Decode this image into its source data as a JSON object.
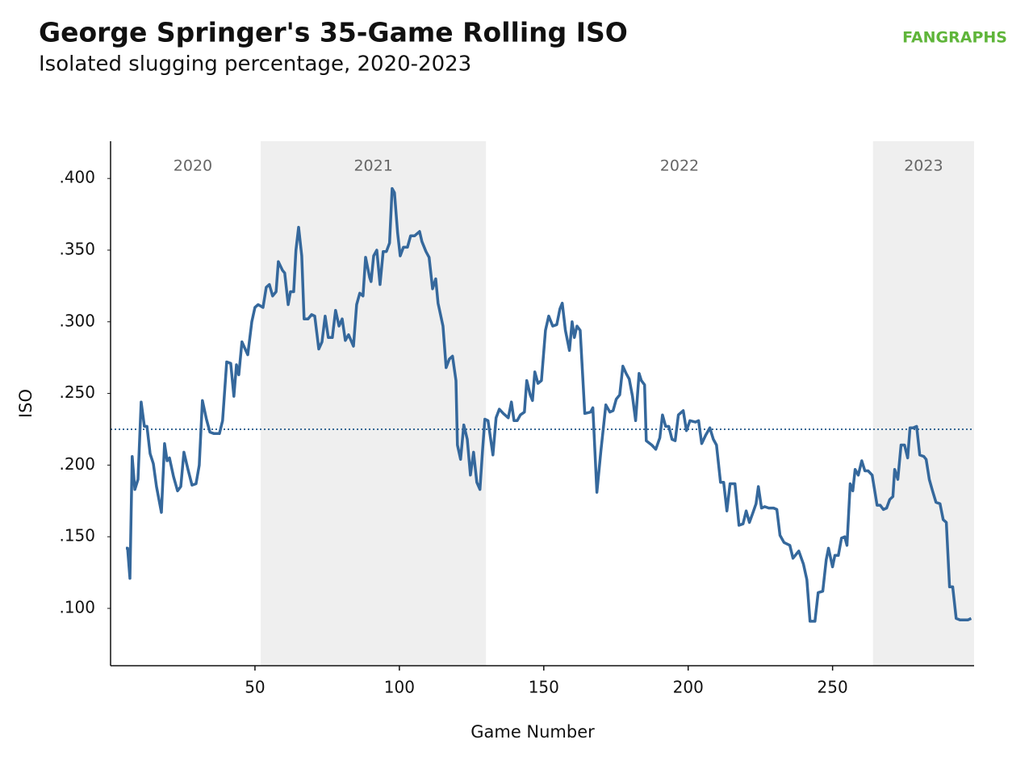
{
  "chart_data": {
    "type": "line",
    "title": "George Springer's 35-Game Rolling ISO",
    "subtitle": "Isolated slugging percentage, 2020-2023",
    "logo": "FANGRAPHS",
    "x_label": "Game Number",
    "y_label": "ISO",
    "xlim": [
      0,
      299
    ],
    "xticks": [
      50,
      100,
      150,
      200,
      250
    ],
    "ylim": [
      0.06,
      0.426
    ],
    "yticks": [
      {
        "value": 0.1,
        "label": ".100"
      },
      {
        "value": 0.15,
        "label": ".150"
      },
      {
        "value": 0.2,
        "label": ".200"
      },
      {
        "value": 0.25,
        "label": ".250"
      },
      {
        "value": 0.3,
        "label": ".300"
      },
      {
        "value": 0.35,
        "label": ".350"
      },
      {
        "value": 0.4,
        "label": ".400"
      }
    ],
    "reference_line": 0.225,
    "reference_color": "#3a6a96",
    "periods": [
      {
        "label": "2020",
        "start": 5,
        "end": 52,
        "shaded": false
      },
      {
        "label": "2021",
        "start": 52,
        "end": 130,
        "shaded": true
      },
      {
        "label": "2022",
        "start": 130,
        "end": 264,
        "shaded": false
      },
      {
        "label": "2023",
        "start": 264,
        "end": 299,
        "shaded": true
      }
    ],
    "shade_color": "#efefef",
    "series": [
      {
        "name": "35-Game Rolling ISO",
        "color": "#35689c",
        "x": [
          5.3,
          5.9,
          6.7,
          7.5,
          8.4,
          9.5,
          10.6,
          11.7,
          12.6,
          13.7,
          14.8,
          15.9,
          17.6,
          18.7,
          19.6,
          20.4,
          21.8,
          23.2,
          24.3,
          25.4,
          26.8,
          28.2,
          29.6,
          30.7,
          31.8,
          33.2,
          34.4,
          35.8,
          37.7,
          38.8,
          40.2,
          41.6,
          42.7,
          43.6,
          44.4,
          45.5,
          47.5,
          48.9,
          50.0,
          51.1,
          52.8,
          53.9,
          55.0,
          56.1,
          57.3,
          58.1,
          59.5,
          60.3,
          61.5,
          62.3,
          63.4,
          64.2,
          65.1,
          66.2,
          67.0,
          68.4,
          69.6,
          70.7,
          72.1,
          73.2,
          74.3,
          75.4,
          76.8,
          77.9,
          79.1,
          80.2,
          81.3,
          82.4,
          84.1,
          85.2,
          86.3,
          87.4,
          88.3,
          89.7,
          90.2,
          91.1,
          92.2,
          93.3,
          94.4,
          95.5,
          96.6,
          97.5,
          98.3,
          99.4,
          100.3,
          101.4,
          102.8,
          103.9,
          105.3,
          107.0,
          107.8,
          109.2,
          110.3,
          111.5,
          112.6,
          113.4,
          115.1,
          116.2,
          117.3,
          118.4,
          119.6,
          120.1,
          121.2,
          122.3,
          123.5,
          124.6,
          125.7,
          126.8,
          127.9,
          128.8,
          129.6,
          130.7,
          132.4,
          133.5,
          134.6,
          136.0,
          137.7,
          138.8,
          139.7,
          140.8,
          141.9,
          143.3,
          144.1,
          145.3,
          146.1,
          146.9,
          148.0,
          149.2,
          150.6,
          151.7,
          153.1,
          154.5,
          155.6,
          156.4,
          157.5,
          158.9,
          159.8,
          160.6,
          161.5,
          162.6,
          164.2,
          166.2,
          167.0,
          168.4,
          169.8,
          171.5,
          172.9,
          174.0,
          175.1,
          176.3,
          177.4,
          178.5,
          179.6,
          180.7,
          181.8,
          183.0,
          183.8,
          184.9,
          185.5,
          187.4,
          188.8,
          190.2,
          191.1,
          192.2,
          193.3,
          194.4,
          195.5,
          196.6,
          198.3,
          199.4,
          200.6,
          202.5,
          203.6,
          204.7,
          206.1,
          207.5,
          208.7,
          209.8,
          211.2,
          212.3,
          213.4,
          214.5,
          216.2,
          217.6,
          219.0,
          220.1,
          221.2,
          222.3,
          223.5,
          224.3,
          225.4,
          226.5,
          227.9,
          229.6,
          230.7,
          231.8,
          233.2,
          235.2,
          236.3,
          238.3,
          239.9,
          241.1,
          242.2,
          243.9,
          245.0,
          246.6,
          247.8,
          248.6,
          250.0,
          250.8,
          252.0,
          253.1,
          254.2,
          255.0,
          256.1,
          257.0,
          257.8,
          258.9,
          260.1,
          261.2,
          262.3,
          263.7,
          265.4,
          266.5,
          267.6,
          268.7,
          269.8,
          270.9,
          271.5,
          272.6,
          273.7,
          274.9,
          276.0,
          276.8,
          277.9,
          279.1,
          280.2,
          281.6,
          282.4,
          283.5,
          284.6,
          285.8,
          287.2,
          288.3,
          289.4,
          290.5,
          291.6,
          292.8,
          294.1,
          295.8,
          296.9,
          298.0
        ],
        "values": [
          0.142,
          0.142,
          0.121,
          0.206,
          0.183,
          0.19,
          0.244,
          0.227,
          0.227,
          0.208,
          0.201,
          0.185,
          0.167,
          0.215,
          0.203,
          0.205,
          0.192,
          0.182,
          0.185,
          0.209,
          0.197,
          0.186,
          0.187,
          0.2,
          0.245,
          0.232,
          0.223,
          0.222,
          0.222,
          0.231,
          0.272,
          0.271,
          0.248,
          0.27,
          0.263,
          0.286,
          0.277,
          0.3,
          0.31,
          0.312,
          0.31,
          0.324,
          0.326,
          0.318,
          0.321,
          0.342,
          0.336,
          0.334,
          0.312,
          0.321,
          0.321,
          0.35,
          0.366,
          0.346,
          0.302,
          0.302,
          0.305,
          0.304,
          0.281,
          0.286,
          0.304,
          0.289,
          0.289,
          0.308,
          0.297,
          0.302,
          0.287,
          0.291,
          0.283,
          0.312,
          0.32,
          0.318,
          0.345,
          0.331,
          0.328,
          0.346,
          0.35,
          0.326,
          0.349,
          0.349,
          0.355,
          0.393,
          0.39,
          0.362,
          0.346,
          0.352,
          0.352,
          0.36,
          0.36,
          0.363,
          0.356,
          0.349,
          0.345,
          0.323,
          0.33,
          0.313,
          0.297,
          0.268,
          0.274,
          0.276,
          0.259,
          0.214,
          0.204,
          0.228,
          0.218,
          0.193,
          0.209,
          0.188,
          0.183,
          0.21,
          0.232,
          0.231,
          0.207,
          0.233,
          0.239,
          0.236,
          0.233,
          0.244,
          0.231,
          0.231,
          0.235,
          0.237,
          0.259,
          0.249,
          0.245,
          0.265,
          0.257,
          0.259,
          0.294,
          0.304,
          0.297,
          0.298,
          0.309,
          0.313,
          0.294,
          0.28,
          0.3,
          0.289,
          0.297,
          0.294,
          0.236,
          0.237,
          0.24,
          0.181,
          0.21,
          0.242,
          0.237,
          0.238,
          0.246,
          0.249,
          0.269,
          0.264,
          0.26,
          0.248,
          0.231,
          0.264,
          0.259,
          0.256,
          0.217,
          0.214,
          0.211,
          0.219,
          0.235,
          0.227,
          0.227,
          0.218,
          0.217,
          0.235,
          0.238,
          0.224,
          0.231,
          0.23,
          0.231,
          0.215,
          0.221,
          0.226,
          0.218,
          0.214,
          0.188,
          0.188,
          0.168,
          0.187,
          0.187,
          0.158,
          0.159,
          0.168,
          0.16,
          0.166,
          0.173,
          0.185,
          0.17,
          0.171,
          0.17,
          0.17,
          0.169,
          0.151,
          0.146,
          0.144,
          0.135,
          0.14,
          0.131,
          0.12,
          0.091,
          0.091,
          0.111,
          0.112,
          0.134,
          0.142,
          0.129,
          0.137,
          0.137,
          0.149,
          0.15,
          0.144,
          0.187,
          0.182,
          0.197,
          0.193,
          0.203,
          0.196,
          0.196,
          0.193,
          0.172,
          0.172,
          0.169,
          0.17,
          0.176,
          0.178,
          0.197,
          0.19,
          0.214,
          0.214,
          0.205,
          0.226,
          0.226,
          0.227,
          0.207,
          0.206,
          0.204,
          0.19,
          0.182,
          0.174,
          0.173,
          0.162,
          0.16,
          0.115,
          0.115,
          0.093,
          0.092,
          0.092,
          0.092,
          0.093
        ]
      }
    ]
  }
}
